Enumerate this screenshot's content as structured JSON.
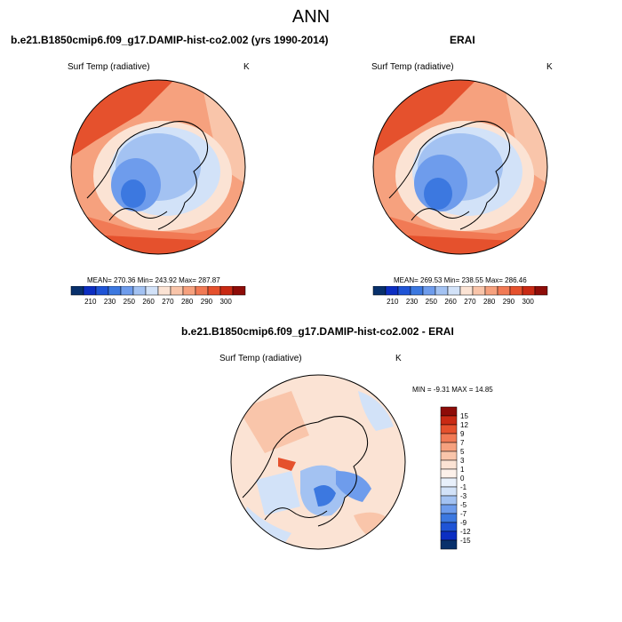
{
  "page": {
    "title": "ANN"
  },
  "panels": [
    {
      "title": "b.e21.B1850cmip6.f09_g17.DAMIP-hist-co2.002 (yrs 1990-2014)",
      "left_label": "Surf Temp (radiative)",
      "right_label": "K",
      "stats": "MEAN= 270.36  Min= 243.92  Max= 287.87"
    },
    {
      "title": "ERAI",
      "left_label": "Surf Temp (radiative)",
      "right_label": "K",
      "stats": "MEAN= 269.53  Min= 238.55  Max= 286.46"
    },
    {
      "title": "b.e21.B1850cmip6.f09_g17.DAMIP-hist-co2.002 - ERAI",
      "left_label": "Surf Temp (radiative)",
      "right_label": "K",
      "stats": "MIN =  -9.31 MAX =  14.85"
    }
  ],
  "colorbar_abs": {
    "labels": [
      "210",
      "230",
      "250",
      "260",
      "270",
      "280",
      "290",
      "300"
    ],
    "colors": [
      "#08306b",
      "#0c2ec2",
      "#1f54d6",
      "#3c78e0",
      "#6e9cec",
      "#a3c2f2",
      "#d2e2f8",
      "#fbe3d4",
      "#f9c5aa",
      "#f6a17e",
      "#f17a55",
      "#e5512d",
      "#c92a14",
      "#8e0c08"
    ]
  },
  "colorbar_diff": {
    "labels": [
      "15",
      "12",
      "9",
      "7",
      "5",
      "3",
      "1",
      "0",
      "-1",
      "-3",
      "-5",
      "-7",
      "-9",
      "-12",
      "-15"
    ],
    "colors": [
      "#8e0c08",
      "#c92a14",
      "#e5512d",
      "#f17a55",
      "#f6a17e",
      "#f9c5aa",
      "#fbe3d4",
      "#fdf1ea",
      "#e8f0fb",
      "#d2e2f8",
      "#a3c2f2",
      "#6e9cec",
      "#3c78e0",
      "#1f54d6",
      "#0c2ec2",
      "#08306b"
    ]
  }
}
